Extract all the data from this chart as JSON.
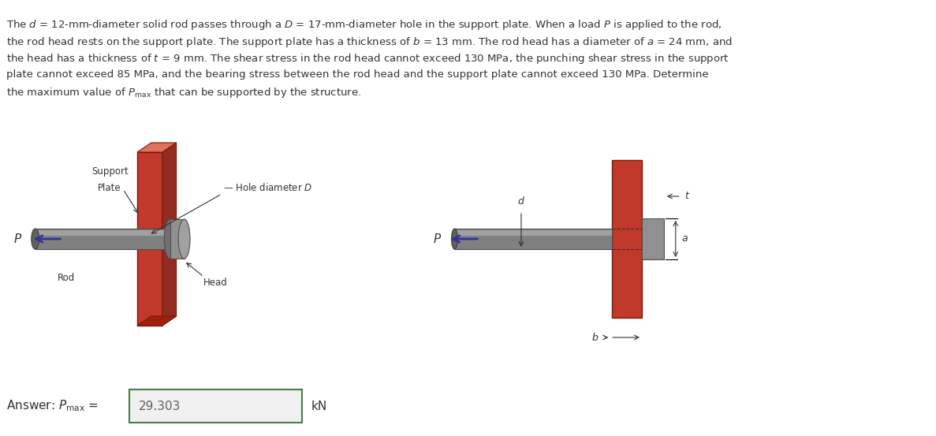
{
  "background_color": "#ffffff",
  "text_color": "#333333",
  "plate_color": "#c0392b",
  "plate_shadow_color": "#922b21",
  "plate_top_color": "#e07060",
  "plate_bot_color": "#a02010",
  "rod_color": "#808080",
  "rod_highlight": "#b8b8b8",
  "head_color": "#909090",
  "head_front_color": "#a0a0a0",
  "head_back_color": "#707070",
  "rod_end_color": "#606060",
  "arrow_color": "#333399",
  "answer_box_fill": "#f0f0f0",
  "answer_box_border": "#4a7a4a",
  "answer_value": "29.303",
  "answer_unit": "kN",
  "title_lines": [
    "The $d$ = 12-mm-diameter solid rod passes through a $D$ = 17-mm-diameter hole in the support plate. When a load $P$ is applied to the rod,",
    "the rod head rests on the support plate. The support plate has a thickness of $b$ = 13 mm. The rod head has a diameter of $a$ = 24 mm, and",
    "the head has a thickness of $t$ = 9 mm. The shear stress in the rod head cannot exceed 130 MPa, the punching shear stress in the support",
    "plate cannot exceed 85 MPa, and the bearing stress between the rod head and the support plate cannot exceed 130 MPa. Determine",
    "the maximum value of $P_{\\mathrm{max}}$ that can be supported by the structure."
  ]
}
